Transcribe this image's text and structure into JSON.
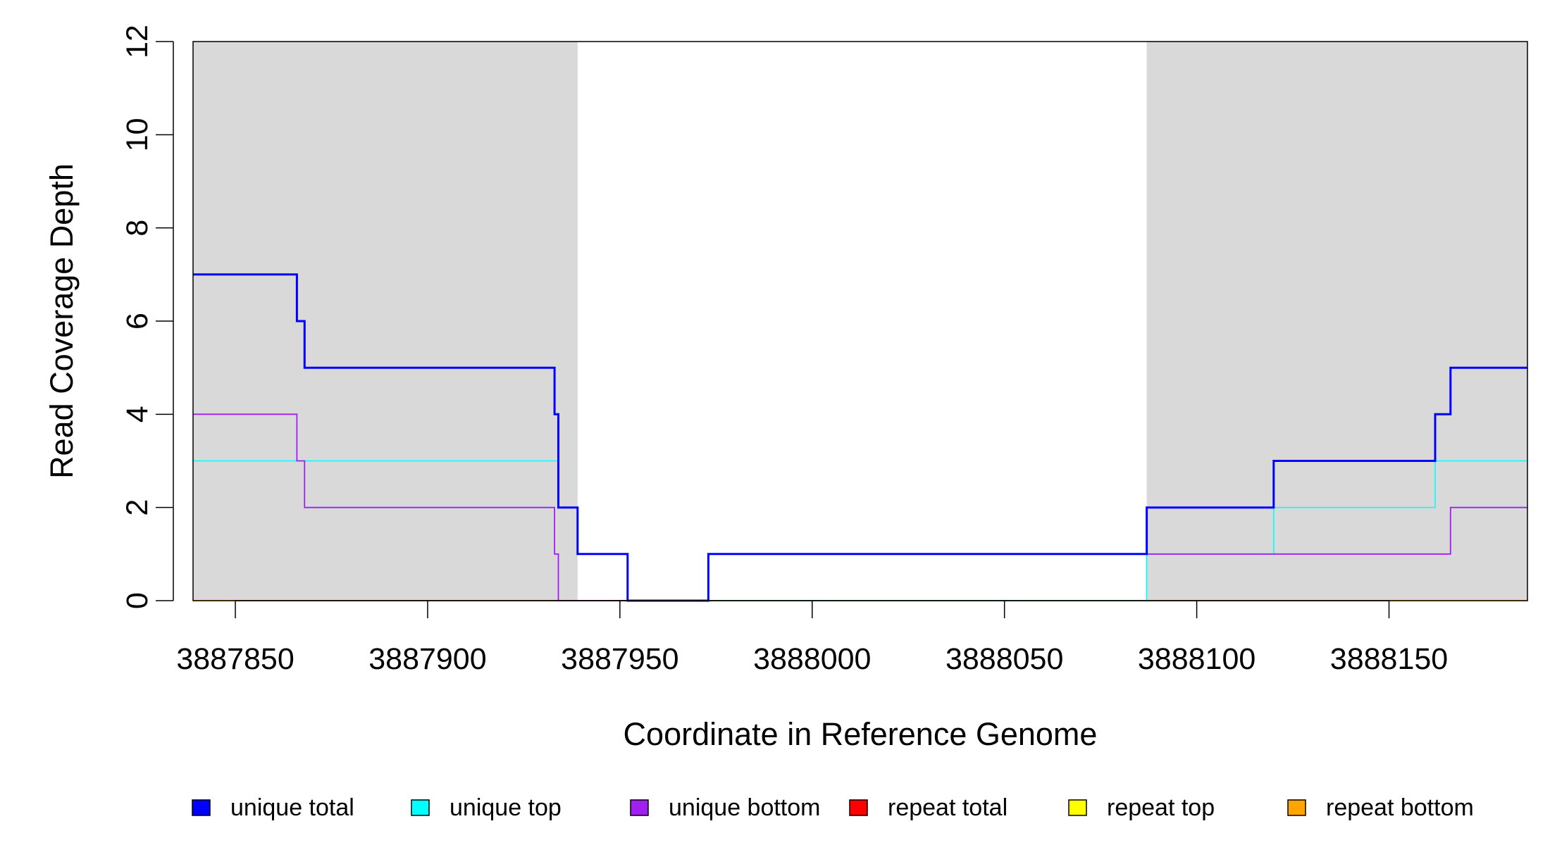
{
  "chart_data": {
    "type": "line",
    "title": "",
    "xlabel": "Coordinate in Reference Genome",
    "ylabel": "Read Coverage Depth",
    "xlim": [
      3887839,
      3888186
    ],
    "ylim": [
      0,
      12
    ],
    "x_ticks": [
      3887850,
      3887900,
      3887950,
      3888000,
      3888050,
      3888100,
      3888150
    ],
    "x_tick_labels": [
      "3887850",
      "3887900",
      "3887950",
      "3888000",
      "3888050",
      "3888100",
      "3888150"
    ],
    "y_ticks": [
      0,
      2,
      4,
      6,
      8,
      10,
      12
    ],
    "y_tick_labels": [
      "0",
      "2",
      "4",
      "6",
      "8",
      "10",
      "12"
    ],
    "grid": false,
    "legend_position": "bottom",
    "shaded_regions": [
      {
        "x": [
          3887839,
          3887939
        ],
        "color": "#d9d9d9"
      },
      {
        "x": [
          3888087,
          3888186
        ],
        "color": "#d9d9d9"
      }
    ],
    "series": [
      {
        "name": "repeat total",
        "color": "#ff0000",
        "points": [
          [
            3887839,
            0
          ],
          [
            3888186,
            0
          ]
        ]
      },
      {
        "name": "repeat top",
        "color": "#ffff00",
        "points": [
          [
            3887839,
            0
          ],
          [
            3888186,
            0
          ]
        ]
      },
      {
        "name": "repeat bottom",
        "color": "#ffa500",
        "points": [
          [
            3887839,
            0
          ],
          [
            3888186,
            0
          ]
        ]
      },
      {
        "name": "unique top",
        "color": "#00ffff",
        "points": [
          [
            3887839,
            3
          ],
          [
            3887934,
            3
          ],
          [
            3887934,
            2
          ],
          [
            3887939,
            2
          ],
          [
            3887939,
            1
          ],
          [
            3887952,
            1
          ],
          [
            3887952,
            0
          ],
          [
            3888087,
            0
          ],
          [
            3888087,
            1
          ],
          [
            3888120,
            1
          ],
          [
            3888120,
            2
          ],
          [
            3888162,
            2
          ],
          [
            3888162,
            3
          ],
          [
            3888186,
            3
          ]
        ]
      },
      {
        "name": "unique bottom",
        "color": "#a020f0",
        "points": [
          [
            3887839,
            4
          ],
          [
            3887866,
            4
          ],
          [
            3887866,
            3
          ],
          [
            3887868,
            3
          ],
          [
            3887868,
            2
          ],
          [
            3887933,
            2
          ],
          [
            3887933,
            1
          ],
          [
            3887934,
            1
          ],
          [
            3887934,
            0
          ],
          [
            3887973,
            0
          ],
          [
            3887973,
            1
          ],
          [
            3888166,
            1
          ],
          [
            3888166,
            2
          ],
          [
            3888186,
            2
          ]
        ]
      },
      {
        "name": "unique total",
        "color": "#0000ff",
        "points": [
          [
            3887839,
            7
          ],
          [
            3887866,
            7
          ],
          [
            3887866,
            6
          ],
          [
            3887868,
            6
          ],
          [
            3887868,
            5
          ],
          [
            3887933,
            5
          ],
          [
            3887933,
            4
          ],
          [
            3887934,
            4
          ],
          [
            3887934,
            2
          ],
          [
            3887939,
            2
          ],
          [
            3887939,
            1
          ],
          [
            3887952,
            1
          ],
          [
            3887952,
            0
          ],
          [
            3887973,
            0
          ],
          [
            3887973,
            1
          ],
          [
            3888087,
            1
          ],
          [
            3888087,
            2
          ],
          [
            3888120,
            2
          ],
          [
            3888120,
            3
          ],
          [
            3888162,
            3
          ],
          [
            3888162,
            4
          ],
          [
            3888166,
            4
          ],
          [
            3888166,
            5
          ],
          [
            3888186,
            5
          ]
        ]
      }
    ],
    "legend": [
      {
        "label": "unique total",
        "color": "#0000ff"
      },
      {
        "label": "unique top",
        "color": "#00ffff"
      },
      {
        "label": "unique bottom",
        "color": "#a020f0"
      },
      {
        "label": "repeat total",
        "color": "#ff0000"
      },
      {
        "label": "repeat top",
        "color": "#ffff00"
      },
      {
        "label": "repeat bottom",
        "color": "#ffa500"
      }
    ]
  }
}
